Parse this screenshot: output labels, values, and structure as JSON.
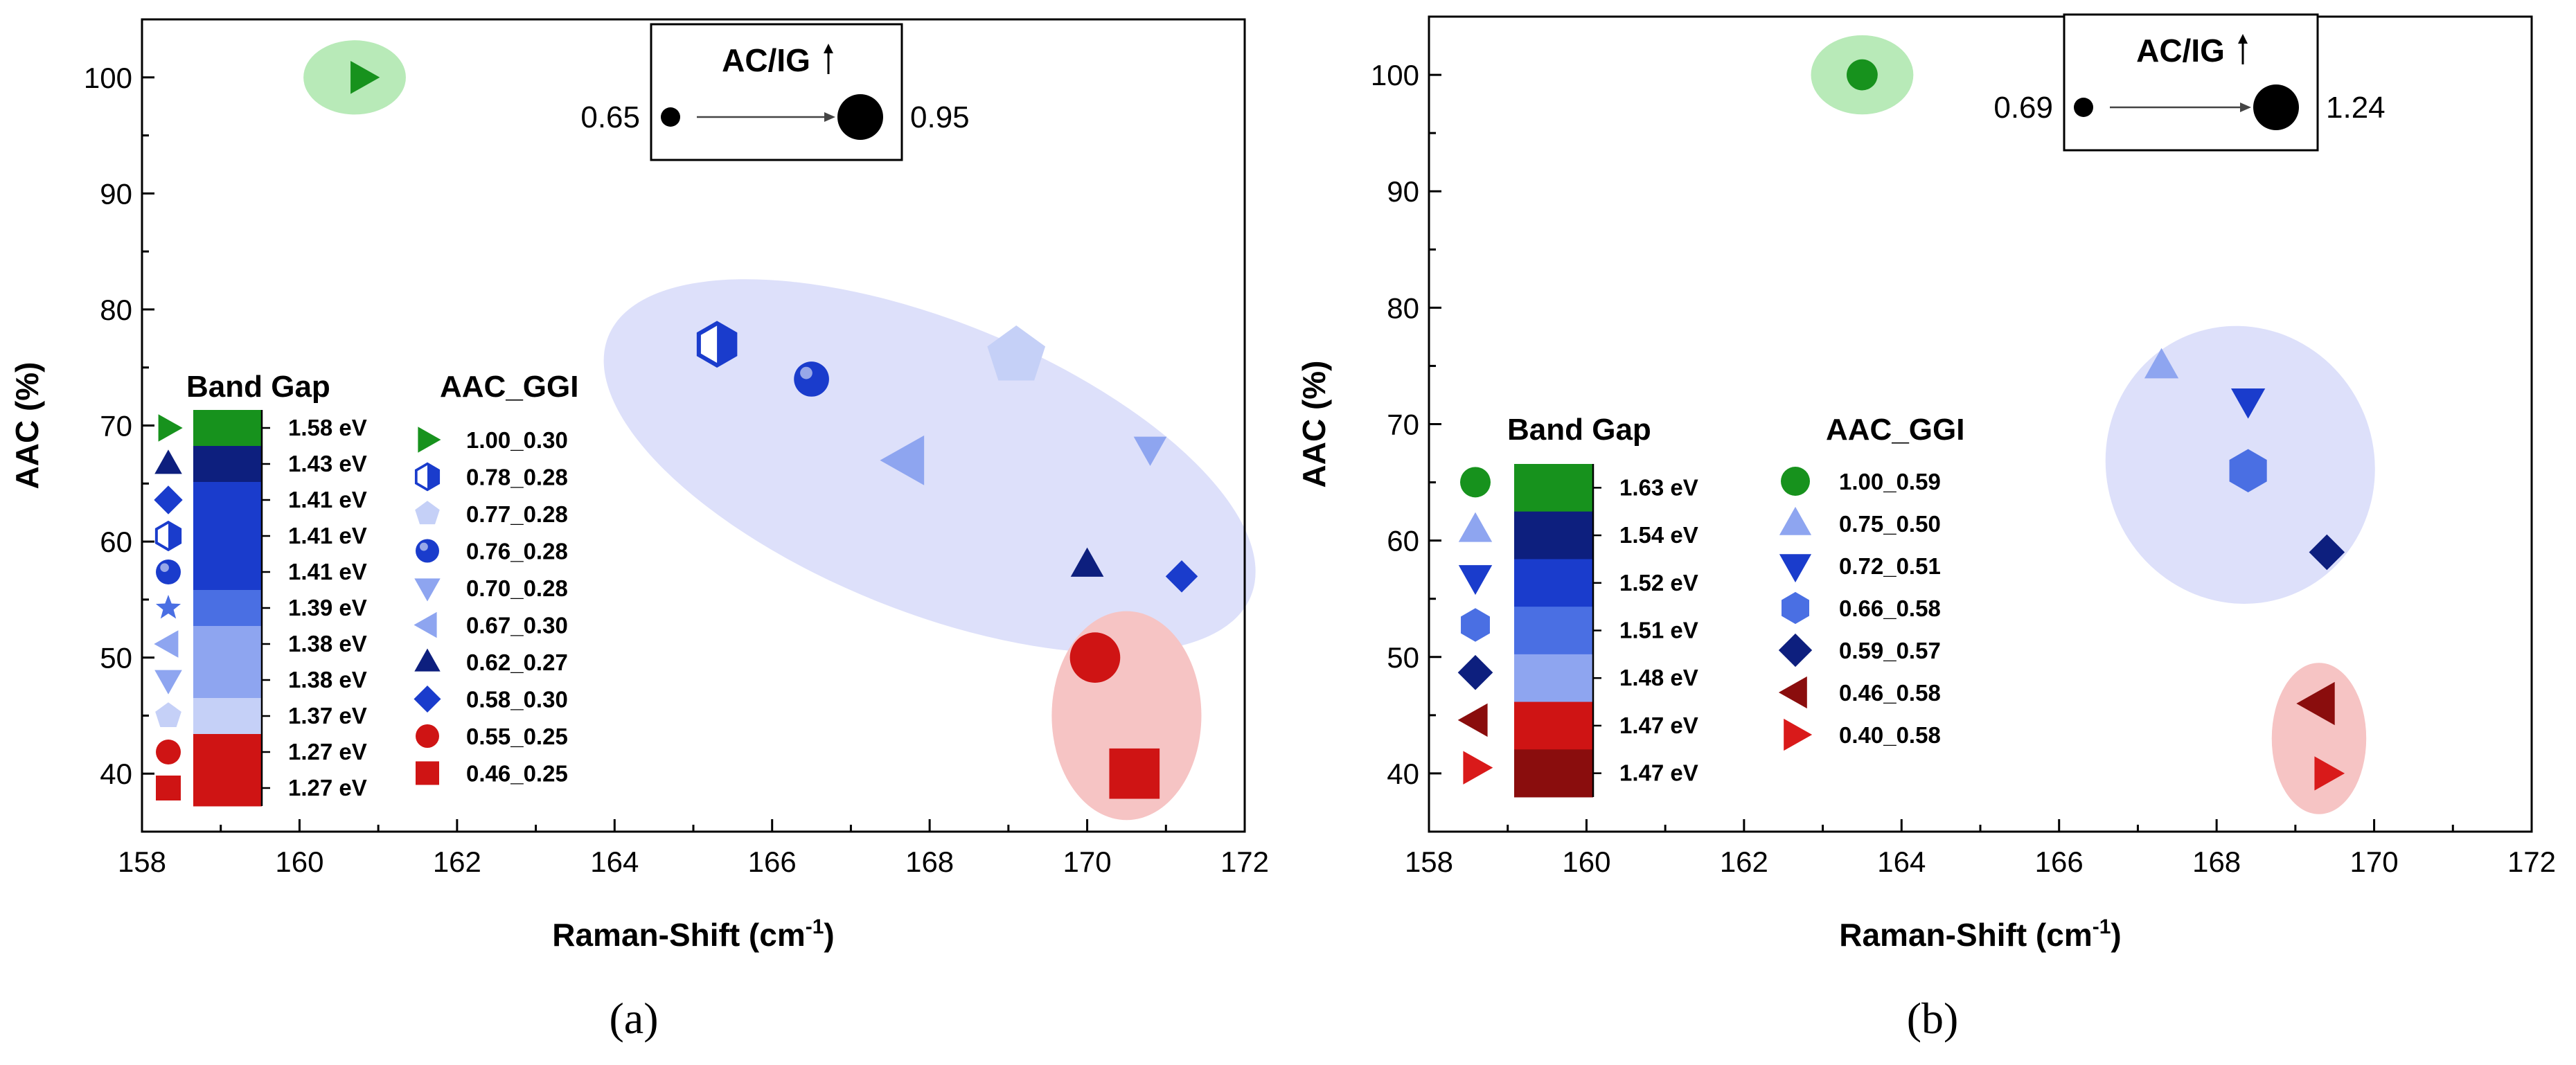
{
  "chart_data": [
    {
      "type": "scatter",
      "panel_label": "(a)",
      "xlabel": "Raman-Shift (cm",
      "xlabel_sup": "-1",
      "xlabel_end": ")",
      "ylabel": "AAC (%)",
      "xlim": [
        158,
        172
      ],
      "ylim": [
        35,
        105
      ],
      "xticks": [
        "158",
        "160",
        "162",
        "164",
        "166",
        "168",
        "170",
        "172"
      ],
      "yticks": [
        "40",
        "50",
        "60",
        "70",
        "80",
        "90",
        "100"
      ],
      "size_legend": {
        "title": "AC/IG",
        "min_label": "0.65",
        "max_label": "0.95"
      },
      "colorbar": {
        "title": "Band Gap",
        "labels": [
          "1.58 eV",
          "1.43 eV",
          "1.41 eV",
          "1.41 eV",
          "1.41 eV",
          "1.39 eV",
          "1.38 eV",
          "1.38 eV",
          "1.37 eV",
          "1.27 eV",
          "1.27 eV"
        ],
        "colors": [
          "#17921d",
          "#0d1f7e",
          "#1a3ccc",
          "#1a3ccc",
          "#1a3ccc",
          "#4a6fe3",
          "#8ea5f0",
          "#8ea5f0",
          "#c5d0f7",
          "#cf1414",
          "#cf1414"
        ]
      },
      "legend_title": "AAC_GGI",
      "series": [
        {
          "name": "1.00_0.30",
          "marker": "triangle-right",
          "color": "#17921d",
          "x": 160.8,
          "y": 100,
          "ac_ig": 0.7
        },
        {
          "name": "0.78_0.28",
          "marker": "hexagon-half",
          "color": "#1a3ccc",
          "x": 165.3,
          "y": 77,
          "ac_ig": 0.78
        },
        {
          "name": "0.77_0.28",
          "marker": "pentagon",
          "color": "#c5d0f7",
          "x": 169.1,
          "y": 76,
          "ac_ig": 0.95
        },
        {
          "name": "0.76_0.28",
          "marker": "sphere",
          "color": "#1a3ccc",
          "x": 166.5,
          "y": 74,
          "ac_ig": 0.75
        },
        {
          "name": "0.70_0.28",
          "marker": "triangle-down",
          "color": "#8ea5f0",
          "x": 170.8,
          "y": 68,
          "ac_ig": 0.7
        },
        {
          "name": "0.67_0.30",
          "marker": "triangle-left",
          "color": "#8ea5f0",
          "x": 167.7,
          "y": 67,
          "ac_ig": 0.85
        },
        {
          "name": "0.62_0.27",
          "marker": "triangle-up",
          "color": "#0d1f7e",
          "x": 170.0,
          "y": 58,
          "ac_ig": 0.7
        },
        {
          "name": "0.58_0.30",
          "marker": "diamond",
          "color": "#1a3ccc",
          "x": 171.2,
          "y": 57,
          "ac_ig": 0.68
        },
        {
          "name": "0.55_0.25",
          "marker": "circle",
          "color": "#cf1414",
          "x": 170.1,
          "y": 50,
          "ac_ig": 0.9
        },
        {
          "name": "0.46_0.25",
          "marker": "square",
          "color": "#cf1414",
          "x": 170.6,
          "y": 40,
          "ac_ig": 0.9
        }
      ],
      "clusters": [
        {
          "name": "green",
          "color": "#b8eab8",
          "cx": 160.7,
          "cy": 100,
          "rx": 0.65,
          "ry": 3.2
        },
        {
          "name": "blue",
          "color": "#dde0fa",
          "cx": 168.0,
          "cy": 66.5,
          "rx": 4.4,
          "ry": 12.5,
          "rotate": 22
        },
        {
          "name": "red",
          "color": "#f6c4c4",
          "cx": 170.5,
          "cy": 45,
          "rx": 0.95,
          "ry": 9.0
        }
      ]
    },
    {
      "type": "scatter",
      "panel_label": "(b)",
      "xlabel": "Raman-Shift (cm",
      "xlabel_sup": "-1",
      "xlabel_end": ")",
      "ylabel": "AAC (%)",
      "xlim": [
        158,
        172
      ],
      "ylim": [
        35,
        105
      ],
      "xticks": [
        "158",
        "160",
        "162",
        "164",
        "166",
        "168",
        "170",
        "172"
      ],
      "yticks": [
        "40",
        "50",
        "60",
        "70",
        "80",
        "90",
        "100"
      ],
      "size_legend": {
        "title": "AC/IG",
        "min_label": "0.69",
        "max_label": "1.24"
      },
      "colorbar": {
        "title": "Band Gap",
        "labels": [
          "1.63 eV",
          "1.54 eV",
          "1.52 eV",
          "1.51 eV",
          "1.48 eV",
          "1.47 eV",
          "1.47 eV"
        ],
        "colors": [
          "#17921d",
          "#0d1f7e",
          "#1a3ccc",
          "#4a6fe3",
          "#8ea5f0",
          "#cf1414",
          "#8a0d0d"
        ]
      },
      "legend_title": "AAC_GGI",
      "series": [
        {
          "name": "1.00_0.59",
          "marker": "circle",
          "color": "#17921d",
          "x": 163.5,
          "y": 100,
          "ac_ig": 0.8
        },
        {
          "name": "0.75_0.50",
          "marker": "triangle-up",
          "color": "#8ea5f0",
          "x": 167.3,
          "y": 75,
          "ac_ig": 0.8
        },
        {
          "name": "0.72_0.51",
          "marker": "triangle-down",
          "color": "#1a3ccc",
          "x": 168.4,
          "y": 72,
          "ac_ig": 0.8
        },
        {
          "name": "0.66_0.58",
          "marker": "hexagon",
          "color": "#4a6fe3",
          "x": 168.4,
          "y": 66,
          "ac_ig": 0.95
        },
        {
          "name": "0.59_0.57",
          "marker": "diamond",
          "color": "#0d1f7e",
          "x": 169.4,
          "y": 59,
          "ac_ig": 0.8
        },
        {
          "name": "0.46_0.58",
          "marker": "triangle-left",
          "color": "#8a0d0d",
          "x": 169.3,
          "y": 46,
          "ac_ig": 0.95
        },
        {
          "name": "0.40_0.58",
          "marker": "triangle-right",
          "color": "#d91a1a",
          "x": 169.4,
          "y": 40,
          "ac_ig": 0.8
        }
      ],
      "clusters": [
        {
          "name": "green",
          "color": "#b8eab8",
          "cx": 163.5,
          "cy": 100,
          "rx": 0.65,
          "ry": 3.4
        },
        {
          "name": "blue",
          "color": "#dde0fa",
          "cx": 168.3,
          "cy": 66.5,
          "rx": 1.7,
          "ry": 12.0,
          "rotate": -22
        },
        {
          "name": "red",
          "color": "#f6c4c4",
          "cx": 169.3,
          "cy": 43,
          "rx": 0.6,
          "ry": 6.5
        }
      ]
    }
  ]
}
